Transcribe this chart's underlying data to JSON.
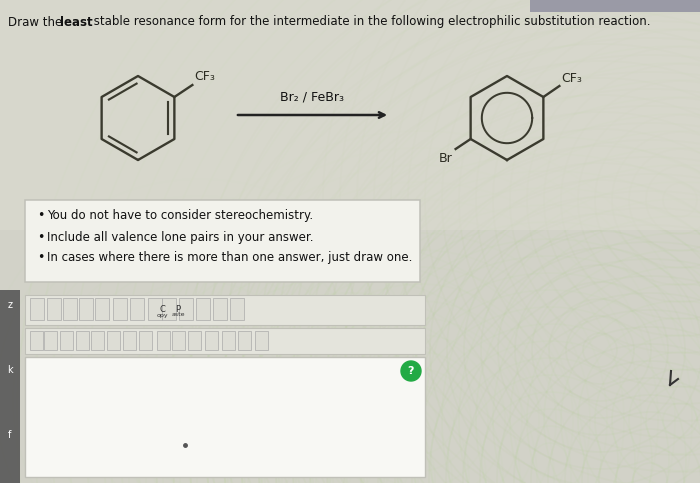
{
  "title_line1": "Draw the ",
  "title_bold": "least",
  "title_line2": " stable resonance form for the intermediate in the following electrophilic substitution reaction.",
  "arrow_label": "Br₂ / FeBr₃",
  "bullet_points": [
    "You do not have to consider stereochemistry.",
    "Include all valence lone pairs in your answer.",
    "In cases where there is more than one answer, just draw one."
  ],
  "bg_main": "#d2d2c8",
  "bg_light": "#e8e8e0",
  "wave_colors": [
    "#b8d8b0",
    "#c8e0b8",
    "#d0e8c0",
    "#e0f0d0"
  ],
  "box_bg": "#f2f2ec",
  "box_edge": "#c0c0b8",
  "toolbar_bg": "#e4e4dc",
  "draw_area_bg": "#f8f8f4",
  "left_bar_color": "#555555",
  "green_btn": "#22aa44",
  "mol_color": "#555544",
  "text_dark": "#111111",
  "url_bar_color": "#9090a0"
}
